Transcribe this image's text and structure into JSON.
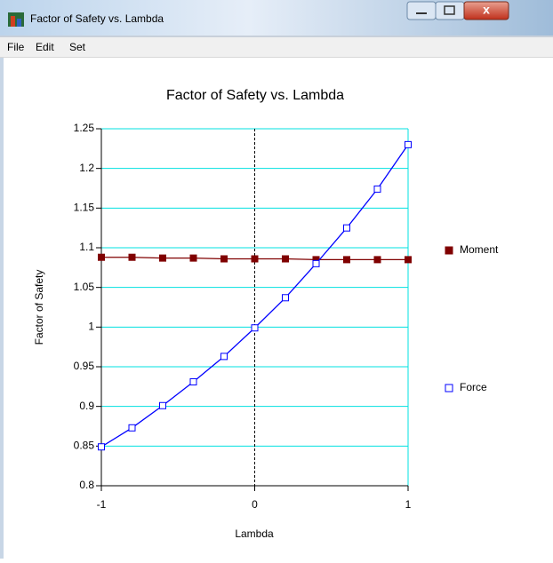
{
  "window": {
    "title": "Factor of Safety vs. Lambda",
    "menu": [
      "File",
      "Edit",
      "Set"
    ]
  },
  "chart_data": {
    "type": "line",
    "title": "Factor of Safety vs. Lambda",
    "x_label": "Lambda",
    "y_label": "Factor of Safety",
    "x": [
      -1,
      -0.8,
      -0.6,
      -0.4,
      -0.2,
      0,
      0.2,
      0.4,
      0.6,
      0.8,
      1
    ],
    "series": [
      {
        "name": "Moment",
        "color": "#800000",
        "marker": "filled-square",
        "values": [
          1.088,
          1.088,
          1.087,
          1.087,
          1.086,
          1.086,
          1.086,
          1.085,
          1.085,
          1.085,
          1.085
        ]
      },
      {
        "name": "Force",
        "color": "#0000ff",
        "marker": "open-square",
        "values": [
          0.849,
          0.873,
          0.901,
          0.931,
          0.963,
          0.999,
          1.037,
          1.08,
          1.125,
          1.174,
          1.23
        ]
      }
    ],
    "xlim": [
      -1,
      1
    ],
    "xticks": [
      -1,
      0,
      1
    ],
    "ylim": [
      0.8,
      1.25
    ],
    "yticks": [
      0.8,
      0.85,
      0.9,
      0.95,
      1,
      1.05,
      1.1,
      1.15,
      1.2,
      1.25
    ],
    "grid": true,
    "grid_color": "#00e0e0",
    "legend": "right"
  }
}
